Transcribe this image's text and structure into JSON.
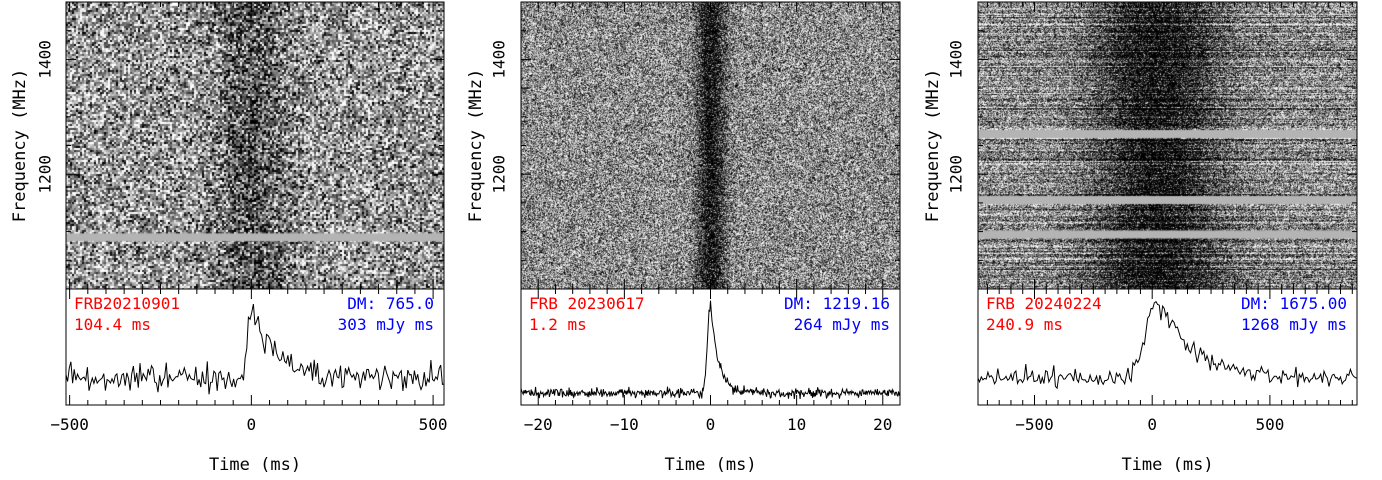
{
  "chart_data": [
    {
      "type": "line",
      "panel": "waterfall-and-profile",
      "burst_name": "FRB20210901",
      "width_label": "104.4 ms",
      "dm_label": "DM: 765.0",
      "fluence_label": "303 mJy ms",
      "xlabel": "Time (ms)",
      "ylabel": "Frequency (MHz)",
      "xlim": [
        -510,
        530
      ],
      "ylim_freq": [
        1000,
        1500
      ],
      "xticks": [
        -500,
        0,
        500
      ],
      "xtick_labels": [
        "−500",
        "0",
        "500"
      ],
      "yticks": [
        1200,
        1400
      ],
      "ytick_labels": [
        "1200",
        "1400"
      ],
      "profile_peak_time": 0,
      "profile_rise_width": 10,
      "profile_decay": 60,
      "profile_baseline": 0.2,
      "profile_noise": 0.07,
      "masked_freq_bands": [
        1090
      ],
      "pulse_visibility": 0.3,
      "pixel_noise": "coarse",
      "colors": {
        "name": "#ff0000",
        "dm": "#0000ff",
        "trace": "#000000"
      }
    },
    {
      "type": "line",
      "panel": "waterfall-and-profile",
      "burst_name": "FRB 20230617",
      "width_label": "1.2 ms",
      "dm_label": "DM: 1219.16",
      "fluence_label": "264 mJy ms",
      "xlabel": "Time (ms)",
      "ylabel": "Frequency (MHz)",
      "xlim": [
        -22,
        22
      ],
      "ylim_freq": [
        1000,
        1500
      ],
      "xticks": [
        -20,
        -10,
        0,
        10,
        20
      ],
      "xtick_labels": [
        "−20",
        "−10",
        "0",
        "10",
        "20"
      ],
      "yticks": [
        1200,
        1400
      ],
      "ytick_labels": [
        "1200",
        "1400"
      ],
      "profile_peak_time": 0,
      "profile_rise_width": 0.35,
      "profile_decay": 0.9,
      "profile_baseline": 0.06,
      "profile_noise": 0.025,
      "masked_freq_bands": [],
      "pulse_visibility": 0.55,
      "pixel_noise": "fine",
      "colors": {
        "name": "#ff0000",
        "dm": "#0000ff",
        "trace": "#000000"
      }
    },
    {
      "type": "line",
      "panel": "waterfall-and-profile",
      "burst_name": "FRB 20240224",
      "width_label": "240.9 ms",
      "dm_label": "DM: 1675.00",
      "fluence_label": "1268 mJy ms",
      "xlabel": "Time (ms)",
      "ylabel": "Frequency (MHz)",
      "xlim": [
        -740,
        870
      ],
      "ylim_freq": [
        1000,
        1500
      ],
      "xticks": [
        -500,
        0,
        500
      ],
      "xtick_labels": [
        "−500",
        "0",
        "500"
      ],
      "yticks": [
        1200,
        1400
      ],
      "ytick_labels": [
        "1200",
        "1400"
      ],
      "profile_peak_time": 20,
      "profile_rise_width": 45,
      "profile_decay": 160,
      "profile_baseline": 0.2,
      "profile_noise": 0.045,
      "masked_freq_bands": [
        1270,
        1155,
        1095
      ],
      "pulse_visibility": 0.55,
      "pixel_noise": "streaky",
      "colors": {
        "name": "#ff0000",
        "dm": "#0000ff",
        "trace": "#000000"
      }
    }
  ]
}
